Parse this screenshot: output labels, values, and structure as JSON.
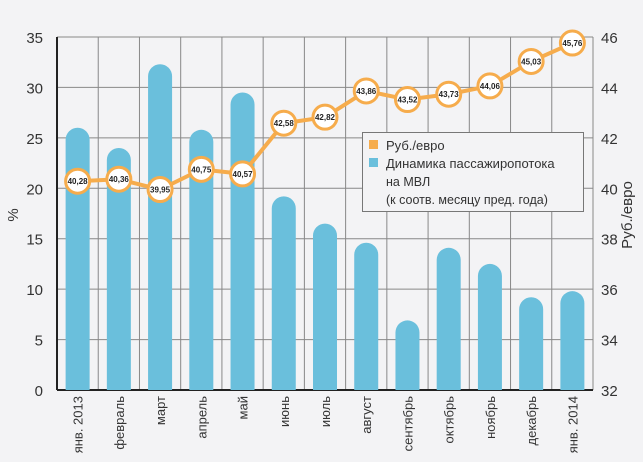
{
  "chart_data": {
    "type": "bar+line",
    "categories": [
      "янв. 2013",
      "февраль",
      "март",
      "апрель",
      "май",
      "июнь",
      "июль",
      "август",
      "сентябрь",
      "октябрь",
      "ноябрь",
      "декабрь",
      "янв. 2014"
    ],
    "series": [
      {
        "name": "Динамика пассажиропотока на МВЛ (к соотв. месяцу пред. года)",
        "type": "bar",
        "axis": "left",
        "color": "#6abfdc",
        "values": [
          26,
          24,
          32.3,
          25.8,
          29.5,
          19.2,
          16.5,
          14.6,
          6.9,
          14.1,
          12.5,
          9.2,
          9.8
        ]
      },
      {
        "name": "Руб./евро",
        "type": "line",
        "axis": "right",
        "color": "#f6ac4c",
        "values": [
          40.28,
          40.36,
          39.95,
          40.75,
          40.57,
          42.58,
          42.82,
          43.86,
          43.52,
          43.73,
          44.06,
          45.03,
          45.76
        ],
        "labels": [
          "40,28",
          "40,36",
          "39,95",
          "40,75",
          "40,57",
          "42,58",
          "42,82",
          "43,86",
          "43,52",
          "43,73",
          "44,06",
          "45,03",
          "45,76"
        ]
      }
    ],
    "ylabel": "%",
    "ylim": [
      0,
      35
    ],
    "yticks": [
      0,
      5,
      10,
      15,
      20,
      25,
      30,
      35
    ],
    "y2label": "Руб./евро",
    "y2lim": [
      32,
      46
    ],
    "y2ticks": [
      32,
      34,
      36,
      38,
      40,
      42,
      44,
      46
    ],
    "grid": true,
    "legend_position": "center-right",
    "legend": {
      "line_label": "Руб./евро",
      "bar_label_1": "Динамика пассажиропотока",
      "bar_label_2": "на МВЛ",
      "bar_label_3": "(к соотв. месяцу пред. года)"
    }
  }
}
